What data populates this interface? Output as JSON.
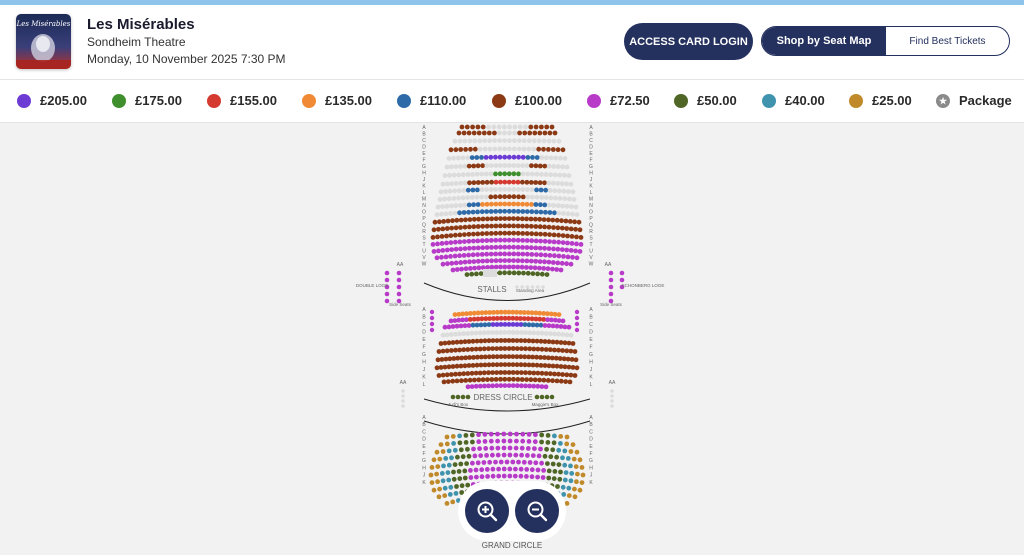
{
  "show": {
    "title": "Les Misérables",
    "venue": "Sondheim Theatre",
    "datetime": "Monday, 10 November 2025 7:30 PM",
    "poster_text": "Les Misérables"
  },
  "header": {
    "access_card_login": "ACCESS CARD LOGIN",
    "shop_by_seat_map": "Shop by Seat Map",
    "find_best_tickets": "Find Best Tickets"
  },
  "legend": [
    {
      "label": "£205.00",
      "color": "#6c3bd4"
    },
    {
      "label": "£175.00",
      "color": "#3f8f2f"
    },
    {
      "label": "£155.00",
      "color": "#d43a30"
    },
    {
      "label": "£135.00",
      "color": "#f08a34"
    },
    {
      "label": "£110.00",
      "color": "#2f6aa8"
    },
    {
      "label": "£100.00",
      "color": "#8b3a15"
    },
    {
      "label": "£72.50",
      "color": "#b73bc8"
    },
    {
      "label": "£50.00",
      "color": "#4f6626"
    },
    {
      "label": "£40.00",
      "color": "#3f93ad"
    },
    {
      "label": "£25.00",
      "color": "#c08a2a"
    },
    {
      "label": "Package",
      "color": "#8a8a8a",
      "icon": "star-icon"
    }
  ],
  "map": {
    "stalls": "STALLS",
    "standing_area": "Standing Area",
    "dress_circle": "DRESS CIRCLE",
    "grand_circle": "GRAND CIRCLE",
    "double_loge": "DOUBLE LOGE",
    "schonberg_loge": "SCHONBERG LOGE",
    "side_seats": "Side Seats",
    "judis_box": "Judi's Box",
    "maggies_box": "Maggie's Box",
    "aa": "AA",
    "stalls_rows": [
      "A",
      "B",
      "C",
      "D",
      "E",
      "F",
      "G",
      "H",
      "J",
      "K",
      "L",
      "M",
      "N",
      "O",
      "P",
      "Q",
      "R",
      "S",
      "T",
      "U",
      "V",
      "W"
    ],
    "dress_rows": [
      "A",
      "B",
      "C",
      "D",
      "E",
      "F",
      "G",
      "H",
      "J",
      "K",
      "L"
    ],
    "grand_rows": [
      "A",
      "B",
      "C",
      "D",
      "E",
      "F",
      "G",
      "H",
      "J",
      "K"
    ]
  },
  "controls": {
    "zoom_in_icon": "zoom-in-icon",
    "zoom_out_icon": "zoom-out-icon"
  }
}
